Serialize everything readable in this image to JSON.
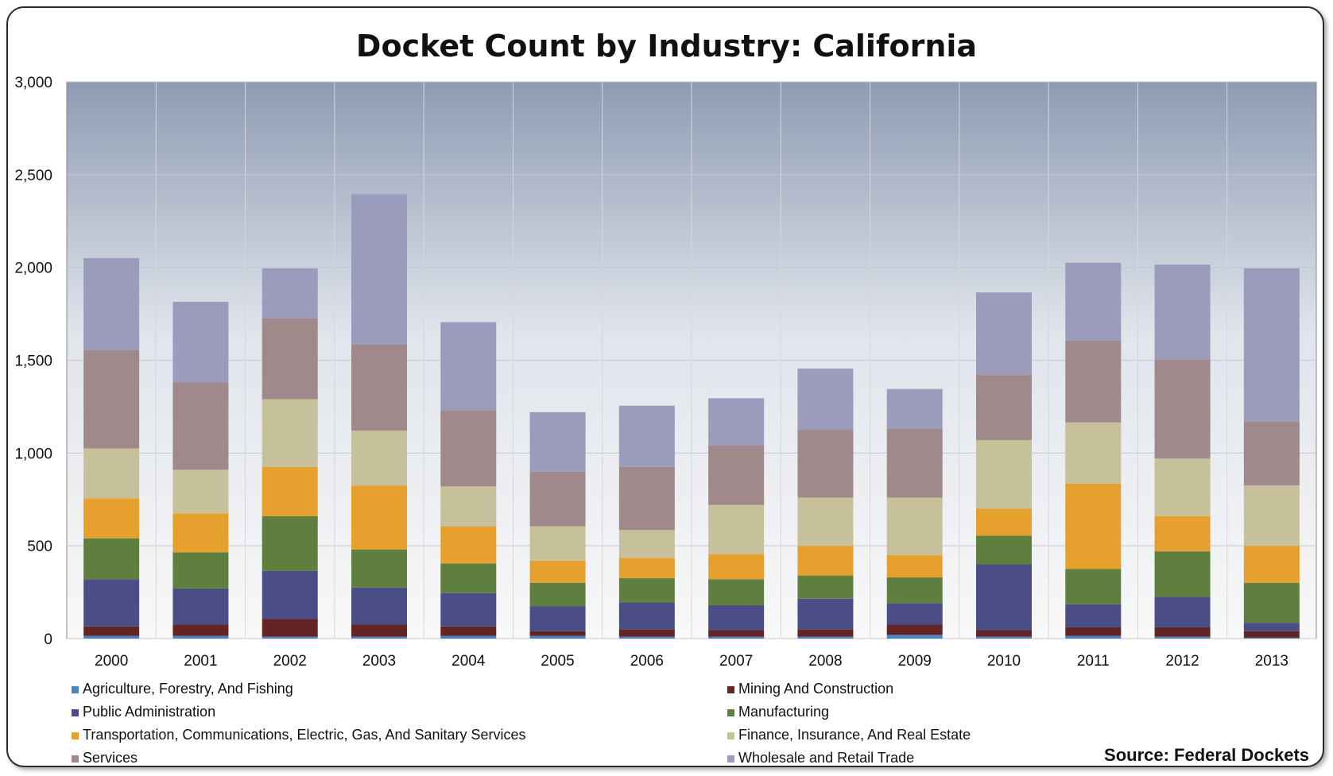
{
  "chart_data": {
    "type": "bar",
    "stacked": true,
    "title": "Docket Count by Industry: California",
    "xlabel": "",
    "ylabel": "",
    "ylim": [
      0,
      3000
    ],
    "yticks": [
      "0",
      "500",
      "1,000",
      "1,500",
      "2,000",
      "2,500",
      "3,000"
    ],
    "categories": [
      "2000",
      "2001",
      "2002",
      "2003",
      "2004",
      "2005",
      "2006",
      "2007",
      "2008",
      "2009",
      "2010",
      "2011",
      "2012",
      "2013"
    ],
    "grid": true,
    "legend_position": "bottom",
    "series": [
      {
        "name": "Agriculture, Forestry, And Fishing",
        "color": "#4f81bd",
        "values": [
          15,
          15,
          10,
          10,
          15,
          15,
          10,
          10,
          10,
          20,
          10,
          15,
          10,
          5
        ]
      },
      {
        "name": "Mining And Construction",
        "color": "#632523",
        "values": [
          50,
          60,
          95,
          65,
          50,
          25,
          40,
          35,
          40,
          55,
          35,
          45,
          50,
          35
        ]
      },
      {
        "name": "Public Administration",
        "color": "#4a4d86",
        "values": [
          255,
          195,
          260,
          200,
          180,
          135,
          145,
          135,
          165,
          115,
          355,
          125,
          165,
          45
        ]
      },
      {
        "name": "Manufacturing",
        "color": "#5e7f3e",
        "values": [
          220,
          195,
          295,
          205,
          160,
          125,
          130,
          140,
          125,
          140,
          155,
          190,
          245,
          215
        ]
      },
      {
        "name": "Transportation, Communications, Electric, Gas, And Sanitary Services",
        "color": "#e6a02e",
        "values": [
          215,
          210,
          265,
          345,
          200,
          120,
          110,
          135,
          160,
          120,
          145,
          460,
          190,
          200
        ]
      },
      {
        "name": "Finance, Insurance, And Real Estate",
        "color": "#c6c19a",
        "values": [
          270,
          235,
          365,
          295,
          215,
          185,
          150,
          265,
          260,
          310,
          370,
          330,
          310,
          325
        ]
      },
      {
        "name": "Services",
        "color": "#a0898a",
        "values": [
          530,
          470,
          435,
          465,
          410,
          295,
          340,
          320,
          365,
          370,
          350,
          440,
          535,
          345
        ]
      },
      {
        "name": "Wholesale and Retail Trade",
        "color": "#9b9cbc",
        "values": [
          495,
          435,
          270,
          810,
          475,
          320,
          330,
          255,
          330,
          215,
          445,
          420,
          510,
          825
        ]
      }
    ],
    "source": "Source: Federal Dockets"
  }
}
